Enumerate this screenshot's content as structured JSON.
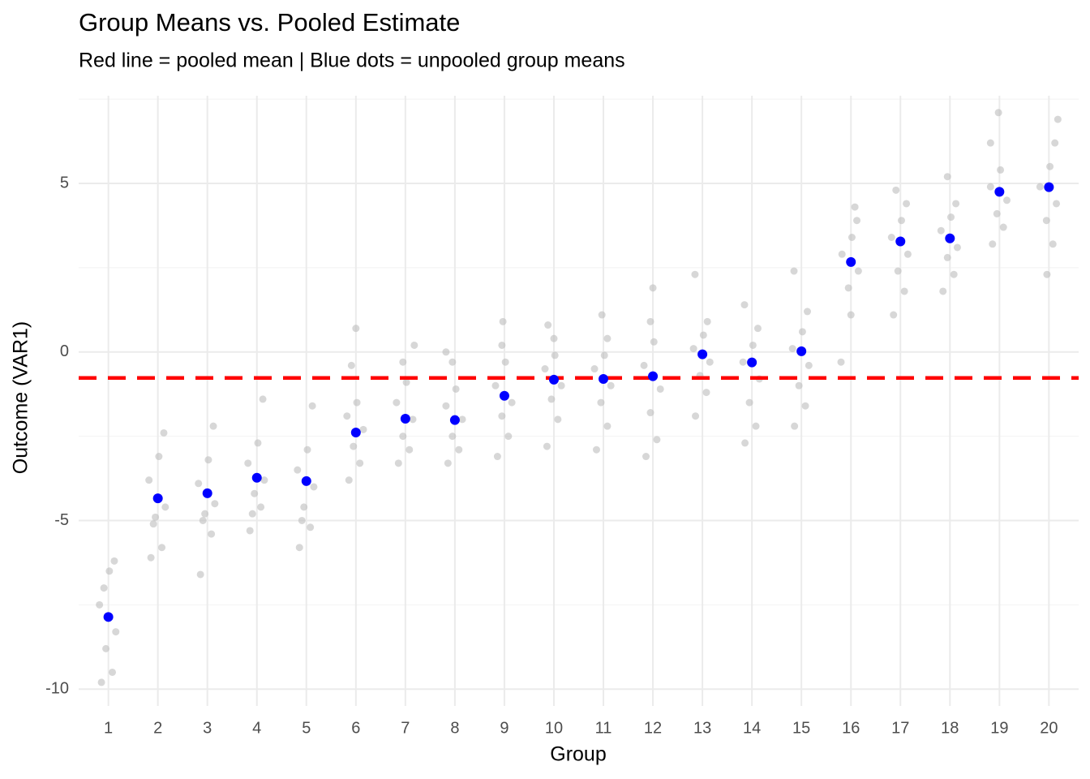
{
  "chart_data": {
    "type": "scatter",
    "title": "Group Means vs. Pooled Estimate",
    "subtitle": "Red line = pooled mean | Blue dots = unpooled group means",
    "x_label": "Group",
    "y_label": "Outcome (VAR1)",
    "xlim": [
      0.4,
      20.6
    ],
    "xticks": [
      1,
      2,
      3,
      4,
      5,
      6,
      7,
      8,
      9,
      10,
      11,
      12,
      13,
      14,
      15,
      16,
      17,
      18,
      19,
      20
    ],
    "ylim": [
      -10.5,
      7.6
    ],
    "yticks": [
      -10,
      -5,
      0,
      5
    ],
    "minor_yticks": [
      -7.5,
      -2.5,
      2.5,
      7.5
    ],
    "grid": true,
    "points": {
      "color": "#bdbdbd",
      "x": [
        0.86,
        1.08,
        0.95,
        1.15,
        0.82,
        1.02,
        1.12,
        0.91,
        1.86,
        2.08,
        1.95,
        2.15,
        1.82,
        2.02,
        2.12,
        1.91,
        2.86,
        3.08,
        2.95,
        3.15,
        2.82,
        3.02,
        3.12,
        2.91,
        3.86,
        4.08,
        3.95,
        4.15,
        3.82,
        4.02,
        4.12,
        3.91,
        4.86,
        5.08,
        4.95,
        5.15,
        4.82,
        5.02,
        5.12,
        4.91,
        5.86,
        6.08,
        5.95,
        6.15,
        5.82,
        6.02,
        5.91,
        6.0,
        6.86,
        7.08,
        6.95,
        7.15,
        6.82,
        7.02,
        6.95,
        7.18,
        7.86,
        8.08,
        7.95,
        8.15,
        7.82,
        8.02,
        7.95,
        7.82,
        8.86,
        9.08,
        8.95,
        9.15,
        8.82,
        9.02,
        8.95,
        8.97,
        9.86,
        10.08,
        9.95,
        10.15,
        9.82,
        10.02,
        10.0,
        9.88,
        10.86,
        11.08,
        10.95,
        11.15,
        10.82,
        11.02,
        11.08,
        10.97,
        11.86,
        12.08,
        11.95,
        12.15,
        11.82,
        12.02,
        11.95,
        12.0,
        12.86,
        13.08,
        12.95,
        13.15,
        12.82,
        13.02,
        13.1,
        12.85,
        13.86,
        14.08,
        13.95,
        14.15,
        13.82,
        14.02,
        14.12,
        13.85,
        14.86,
        15.08,
        14.95,
        15.15,
        14.82,
        15.02,
        15.12,
        14.85,
        15.8,
        16.0,
        15.95,
        16.15,
        15.82,
        16.02,
        16.12,
        16.08,
        16.86,
        17.08,
        16.95,
        17.15,
        16.82,
        17.02,
        17.12,
        16.91,
        17.86,
        18.08,
        17.95,
        18.15,
        17.82,
        18.02,
        18.12,
        17.95,
        18.86,
        19.08,
        18.95,
        19.15,
        18.82,
        19.02,
        18.82,
        18.98,
        19.96,
        20.08,
        19.95,
        20.15,
        19.82,
        20.02,
        20.12,
        20.18
      ],
      "y": [
        -9.8,
        -9.5,
        -8.8,
        -8.3,
        -7.5,
        -6.5,
        -6.2,
        -7.0,
        -6.1,
        -5.8,
        -4.9,
        -4.6,
        -3.8,
        -3.1,
        -2.4,
        -5.1,
        -6.6,
        -5.4,
        -4.8,
        -4.5,
        -3.9,
        -3.2,
        -2.2,
        -5.0,
        -5.3,
        -4.6,
        -4.2,
        -3.8,
        -3.3,
        -2.7,
        -1.4,
        -4.8,
        -5.8,
        -5.2,
        -4.6,
        -4.0,
        -3.5,
        -2.9,
        -1.6,
        -5.0,
        -3.8,
        -3.3,
        -2.8,
        -2.3,
        -1.9,
        -1.5,
        -0.4,
        0.7,
        -3.3,
        -2.9,
        -2.5,
        -2.0,
        -1.5,
        -0.9,
        -0.3,
        0.2,
        -3.3,
        -2.9,
        -2.5,
        -2.0,
        -1.6,
        -1.1,
        -0.3,
        0.0,
        -3.1,
        -2.5,
        -1.9,
        -1.5,
        -1.0,
        -0.3,
        0.2,
        0.9,
        -2.8,
        -2.0,
        -1.4,
        -1.0,
        -0.5,
        -0.1,
        0.4,
        0.8,
        -2.9,
        -2.2,
        -1.5,
        -1.0,
        -0.5,
        -0.1,
        0.4,
        1.1,
        -3.1,
        -2.6,
        -1.8,
        -1.1,
        -0.4,
        0.3,
        0.9,
        1.9,
        -1.9,
        -1.2,
        -0.7,
        -0.3,
        0.1,
        0.5,
        0.9,
        2.3,
        -2.7,
        -2.2,
        -1.5,
        -0.8,
        -0.3,
        0.2,
        0.7,
        1.4,
        -2.2,
        -1.6,
        -1.0,
        -0.4,
        0.1,
        0.6,
        1.2,
        2.4,
        -0.3,
        1.1,
        1.9,
        2.4,
        2.9,
        3.4,
        3.9,
        4.3,
        1.1,
        1.8,
        2.4,
        2.9,
        3.4,
        3.9,
        4.4,
        4.8,
        1.8,
        2.3,
        2.8,
        3.1,
        3.6,
        4.0,
        4.4,
        5.2,
        3.2,
        3.7,
        4.1,
        4.5,
        4.9,
        5.4,
        6.2,
        7.1,
        2.3,
        3.2,
        3.9,
        4.4,
        4.9,
        5.5,
        6.2,
        6.9
      ]
    },
    "means": {
      "color": "#0000ff",
      "x": [
        1,
        2,
        3,
        4,
        5,
        6,
        7,
        8,
        9,
        10,
        11,
        12,
        13,
        14,
        15,
        16,
        17,
        18,
        19,
        20
      ],
      "y": [
        -7.86,
        -4.34,
        -4.19,
        -3.73,
        -3.83,
        -2.39,
        -1.98,
        -2.02,
        -1.3,
        -0.82,
        -0.8,
        -0.72,
        -0.07,
        -0.31,
        0.02,
        2.67,
        3.28,
        3.37,
        4.75,
        4.89
      ]
    },
    "pooled_mean": {
      "value": -0.77,
      "color": "#ff0000"
    }
  }
}
